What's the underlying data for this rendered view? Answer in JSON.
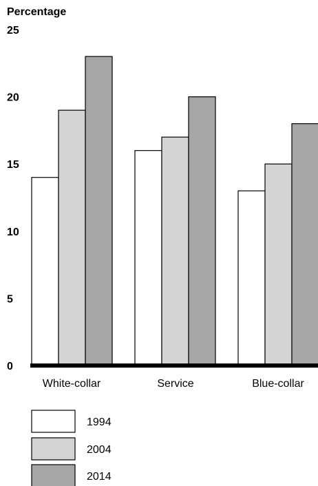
{
  "chart_data": {
    "type": "bar",
    "ylabel": "Percentage",
    "xlabel": "",
    "ylim": [
      0,
      25
    ],
    "yticks": [
      0,
      5,
      10,
      15,
      20,
      25
    ],
    "categories": [
      "White-collar",
      "Service",
      "Blue-collar"
    ],
    "series": [
      {
        "name": "1994",
        "color": "#ffffff",
        "values": [
          14,
          16,
          13
        ]
      },
      {
        "name": "2004",
        "color": "#d4d4d4",
        "values": [
          19,
          17,
          15
        ]
      },
      {
        "name": "2014",
        "color": "#a6a6a6",
        "values": [
          23,
          20,
          18
        ]
      }
    ],
    "legend_position": "bottom-left",
    "grid": false
  }
}
